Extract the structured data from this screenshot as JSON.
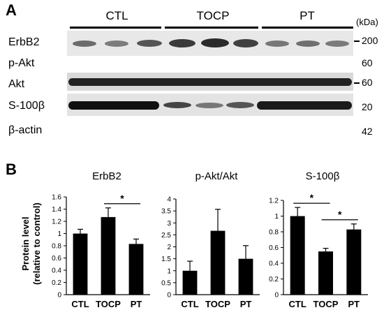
{
  "panels": {
    "a": "A",
    "b": "B"
  },
  "blot": {
    "groups": [
      "CTL",
      "TOCP",
      "PT"
    ],
    "unit": "(kDa)",
    "rows": [
      {
        "label": "ErbB2",
        "kda": "200"
      },
      {
        "label": "p-Akt",
        "kda": "60"
      },
      {
        "label": "Akt",
        "kda": "60"
      },
      {
        "label": "S-100β",
        "kda": "20"
      },
      {
        "label": "β-actin",
        "kda": "42"
      }
    ]
  },
  "ylabel_line1": "Protein level",
  "ylabel_line2": "(relative to control)",
  "chart_data": [
    {
      "type": "bar",
      "title": "ErbB2",
      "categories": [
        "CTL",
        "TOCP",
        "PT"
      ],
      "values": [
        1.0,
        1.27,
        0.83
      ],
      "errors": [
        0.07,
        0.15,
        0.08
      ],
      "ylim": [
        0,
        1.6
      ],
      "yticks": [
        "0",
        "0.2",
        "0.4",
        "0.6",
        "0.8",
        "1",
        "1.2",
        "1.4",
        "1.6"
      ],
      "significance": [
        {
          "from": 1,
          "to": 2,
          "label": "*"
        }
      ]
    },
    {
      "type": "bar",
      "title": "p-Akt/Akt",
      "categories": [
        "CTL",
        "TOCP",
        "PT"
      ],
      "values": [
        1.0,
        2.67,
        1.5
      ],
      "errors": [
        0.4,
        0.9,
        0.55
      ],
      "ylim": [
        0,
        4
      ],
      "yticks": [
        "0",
        "0.5",
        "1",
        "1.5",
        "2",
        "2.5",
        "3",
        "3.5",
        "4"
      ],
      "significance": []
    },
    {
      "type": "bar",
      "title": "S-100β",
      "categories": [
        "CTL",
        "TOCP",
        "PT"
      ],
      "values": [
        1.0,
        0.55,
        0.83
      ],
      "errors": [
        0.11,
        0.04,
        0.07
      ],
      "ylim": [
        0,
        1.2
      ],
      "yticks": [
        "0",
        "0.2",
        "0.4",
        "0.6",
        "0.8",
        "1",
        "1.2"
      ],
      "significance": [
        {
          "from": 0,
          "to": 1,
          "label": "*"
        },
        {
          "from": 1,
          "to": 2,
          "label": "*"
        }
      ]
    }
  ]
}
